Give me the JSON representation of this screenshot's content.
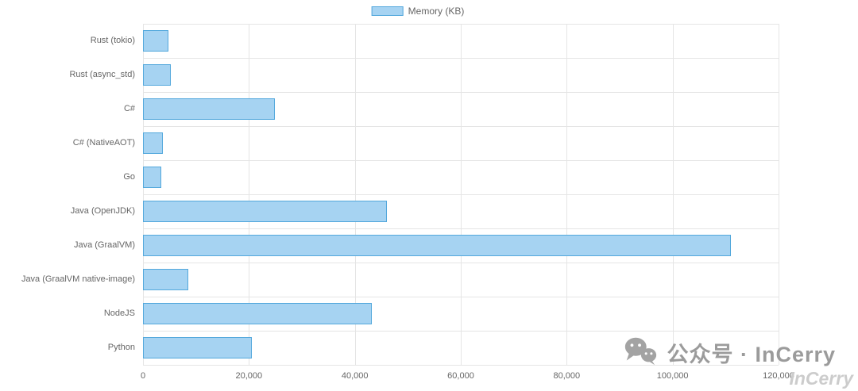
{
  "chart_data": {
    "type": "bar",
    "orientation": "horizontal",
    "title": "",
    "legend": "Memory (KB)",
    "legend_position": "top-center",
    "categories": [
      "Rust (tokio)",
      "Rust (async_std)",
      "C#",
      "C# (NativeAOT)",
      "Go",
      "Java (OpenJDK)",
      "Java (GraalVM)",
      "Java (GraalVM native-image)",
      "NodeJS",
      "Python"
    ],
    "values": [
      4800,
      5300,
      24900,
      3800,
      3500,
      46000,
      111000,
      8500,
      43200,
      20500
    ],
    "xlim": [
      0,
      120000
    ],
    "xticks": [
      0,
      20000,
      40000,
      60000,
      80000,
      100000,
      120000
    ],
    "xtick_labels": [
      "0",
      "20,000",
      "40,000",
      "60,000",
      "80,000",
      "100,000",
      "120,000"
    ],
    "grid": true,
    "colors": {
      "bar_fill": "#A6D3F2",
      "bar_border": "#53A8DC",
      "gridline": "#e5e5e5",
      "axis_text": "#666666"
    }
  },
  "watermark": {
    "text": "公众号 · InCerry",
    "signature": "InCerry"
  }
}
